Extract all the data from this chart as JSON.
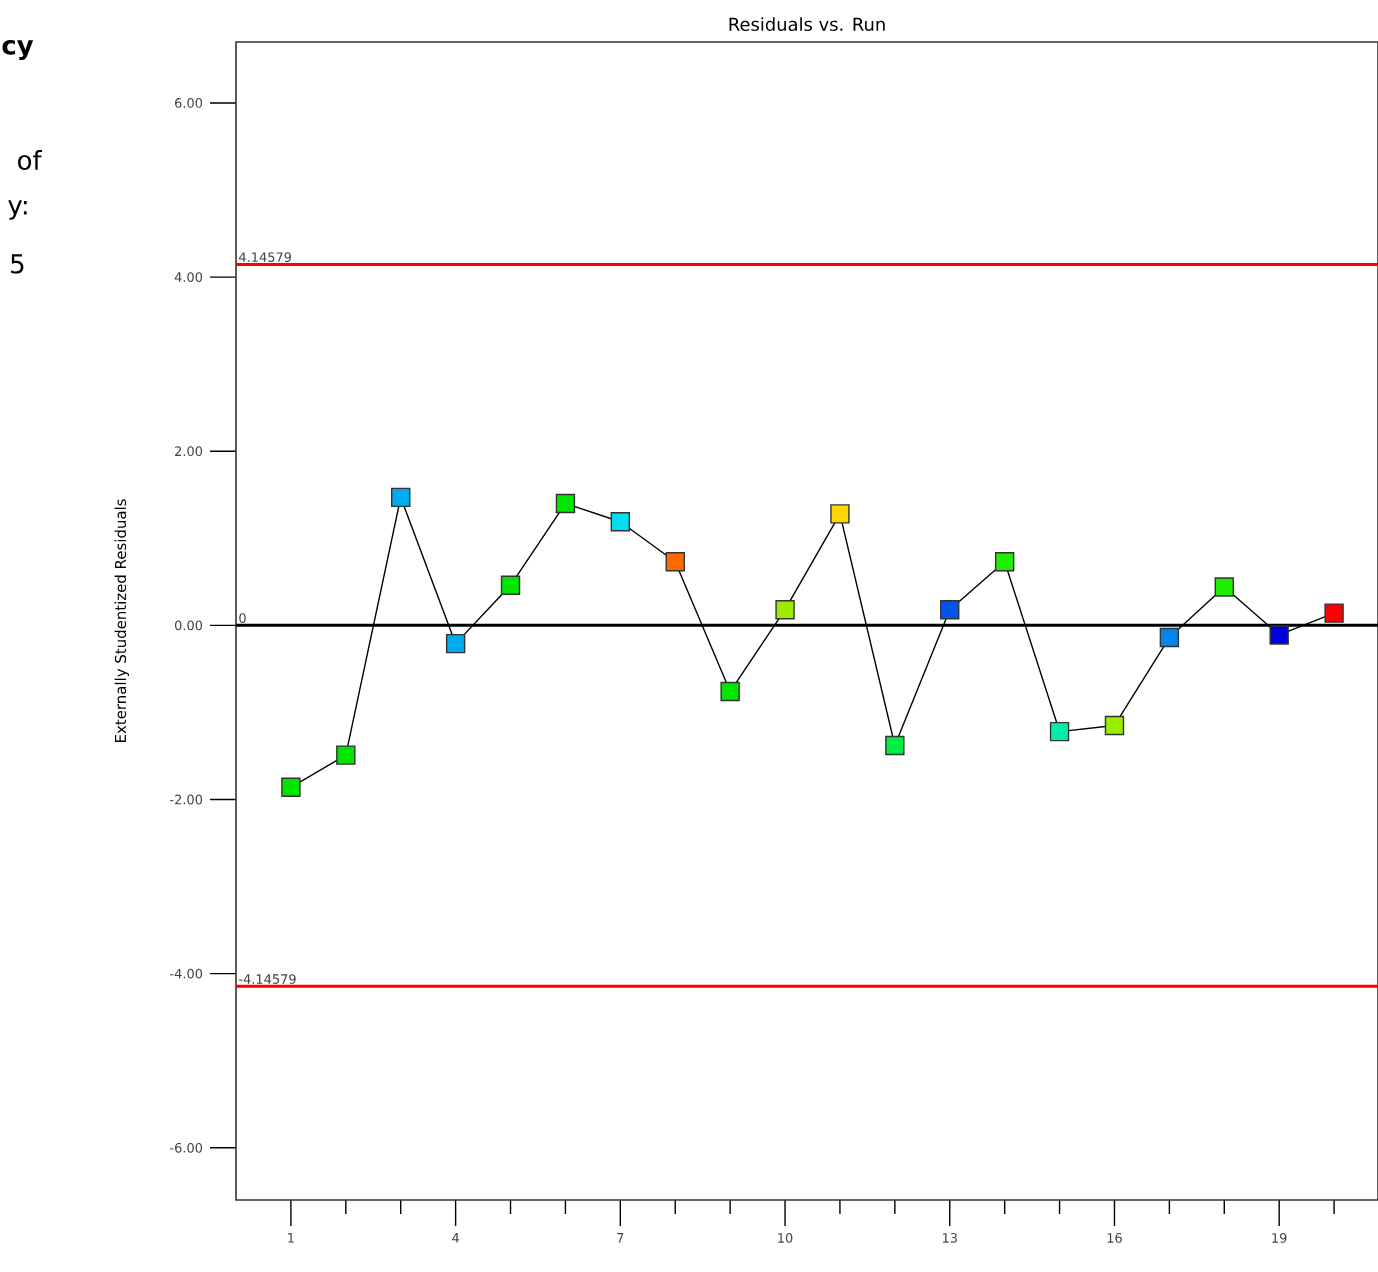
{
  "chart_data": {
    "type": "line",
    "title": "Residuals vs. Run",
    "ylabel": "Externally Studentized Residuals",
    "x": [
      1,
      2,
      3,
      4,
      5,
      6,
      7,
      8,
      9,
      10,
      11,
      12,
      13,
      14,
      15,
      16,
      17,
      18,
      19,
      20
    ],
    "series": [
      {
        "color": "#000000",
        "values": [
          -1.86,
          -1.49,
          1.47,
          -0.21,
          0.46,
          1.4,
          1.19,
          0.73,
          -0.76,
          0.18,
          1.28,
          -1.38,
          0.18,
          0.73,
          -1.22,
          -1.15,
          -0.14,
          0.44,
          -0.11,
          0.14
        ],
        "colors": [
          "#00e600",
          "#00e600",
          "#00aaee",
          "#00aaee",
          "#00e600",
          "#00e600",
          "#00e0f0",
          "#ff6a00",
          "#00e600",
          "#99ee00",
          "#ffd700",
          "#00ee44",
          "#0055ee",
          "#22ee00",
          "#00eeaa",
          "#99ee00",
          "#0088ee",
          "#22ee00",
          "#0000dd",
          "#ff0000"
        ]
      }
    ],
    "xlim": [
      0,
      20.8
    ],
    "ylim": [
      -6.6,
      6.7
    ],
    "xticks": [
      1,
      {
        "value": 2,
        "label": null
      },
      {
        "value": 3,
        "label": null
      },
      4,
      {
        "value": 5,
        "label": null
      },
      {
        "value": 6,
        "label": null
      },
      7,
      {
        "value": 8,
        "label": null
      },
      {
        "value": 9,
        "label": null
      },
      10,
      {
        "value": 11,
        "label": null
      },
      {
        "value": 12,
        "label": null
      },
      13,
      {
        "value": 14,
        "label": null
      },
      {
        "value": 15,
        "label": null
      },
      16,
      {
        "value": 17,
        "label": null
      },
      {
        "value": 18,
        "label": null
      },
      19,
      {
        "value": 20,
        "label": null
      }
    ],
    "yticks": [
      {
        "value": -6,
        "label": "-6.00"
      },
      {
        "value": -4,
        "label": "-4.00"
      },
      {
        "value": -2,
        "label": "-2.00"
      },
      {
        "value": 0,
        "label": "0.00"
      },
      {
        "value": 2,
        "label": "2.00"
      },
      {
        "value": 4,
        "label": "4.00"
      },
      {
        "value": 6,
        "label": "6.00"
      }
    ],
    "ref_lines": [
      {
        "axis": "y",
        "value": 4.14579,
        "label": "4.14579",
        "color": "#ff0000"
      },
      {
        "axis": "y",
        "value": -4.14579,
        "label": "-4.14579",
        "color": "#ff0000"
      },
      {
        "axis": "y",
        "value": 0,
        "label": "0",
        "color": "#000000"
      }
    ],
    "annotations": [
      "cy",
      "of",
      "y:",
      "5"
    ],
    "marker": "square",
    "line_style": "solid",
    "grid": false
  }
}
